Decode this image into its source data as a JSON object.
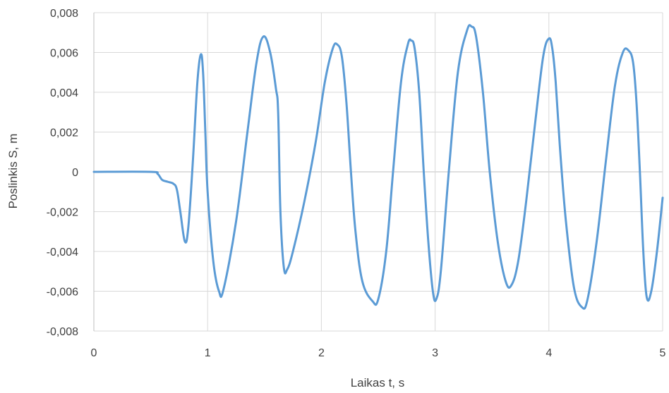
{
  "chart_data": {
    "type": "line",
    "title": "",
    "xlabel": "Laikas t, s",
    "ylabel": "Poslinkis S, m",
    "xlim": [
      0,
      5
    ],
    "ylim": [
      -0.008,
      0.008
    ],
    "x_ticks": [
      0,
      1,
      2,
      3,
      4,
      5
    ],
    "x_tick_labels": [
      "0",
      "1",
      "2",
      "3",
      "4",
      "5"
    ],
    "y_ticks": [
      -0.008,
      -0.006,
      -0.004,
      -0.002,
      0,
      0.002,
      0.004,
      0.006,
      0.008
    ],
    "y_tick_labels": [
      "-0,008",
      "-0,006",
      "-0,004",
      "-0,002",
      "0",
      "0,002",
      "0,004",
      "0,006",
      "0,008"
    ],
    "grid": true,
    "legend": "none",
    "series": [
      {
        "color": "#5b9bd5",
        "points": [
          [
            0,
            0
          ],
          [
            0.5,
            0
          ],
          [
            0.56,
            -0.0001
          ],
          [
            0.6,
            -0.0004
          ],
          [
            0.65,
            -0.0005
          ],
          [
            0.7,
            -0.0006
          ],
          [
            0.73,
            -0.0009
          ],
          [
            0.76,
            -0.002
          ],
          [
            0.8,
            -0.0035
          ],
          [
            0.83,
            -0.0028
          ],
          [
            0.87,
            0.0005
          ],
          [
            0.91,
            0.0045
          ],
          [
            0.94,
            0.0059
          ],
          [
            0.96,
            0.005
          ],
          [
            0.98,
            0.002
          ],
          [
            1.0,
            -0.001
          ],
          [
            1.05,
            -0.0045
          ],
          [
            1.1,
            -0.006
          ],
          [
            1.14,
            -0.0059
          ],
          [
            1.25,
            -0.0025
          ],
          [
            1.35,
            0.002
          ],
          [
            1.43,
            0.0055
          ],
          [
            1.49,
            0.0068
          ],
          [
            1.55,
            0.006
          ],
          [
            1.6,
            0.0042
          ],
          [
            1.62,
            0.003
          ],
          [
            1.64,
            -0.002
          ],
          [
            1.67,
            -0.0048
          ],
          [
            1.7,
            -0.0049
          ],
          [
            1.75,
            -0.004
          ],
          [
            1.85,
            -0.0015
          ],
          [
            1.95,
            0.0015
          ],
          [
            2.03,
            0.0045
          ],
          [
            2.1,
            0.0062
          ],
          [
            2.14,
            0.0064
          ],
          [
            2.18,
            0.0058
          ],
          [
            2.22,
            0.0035
          ],
          [
            2.26,
            0.0
          ],
          [
            2.3,
            -0.003
          ],
          [
            2.36,
            -0.0055
          ],
          [
            2.45,
            -0.0065
          ],
          [
            2.5,
            -0.0064
          ],
          [
            2.57,
            -0.004
          ],
          [
            2.63,
            0.0
          ],
          [
            2.7,
            0.0045
          ],
          [
            2.76,
            0.0064
          ],
          [
            2.79,
            0.0066
          ],
          [
            2.82,
            0.0062
          ],
          [
            2.86,
            0.004
          ],
          [
            2.9,
            0.0
          ],
          [
            2.94,
            -0.0035
          ],
          [
            2.98,
            -0.006
          ],
          [
            3.01,
            -0.0064
          ],
          [
            3.05,
            -0.005
          ],
          [
            3.12,
            0.0
          ],
          [
            3.2,
            0.005
          ],
          [
            3.28,
            0.0071
          ],
          [
            3.32,
            0.0073
          ],
          [
            3.36,
            0.0068
          ],
          [
            3.42,
            0.004
          ],
          [
            3.48,
            0.0
          ],
          [
            3.55,
            -0.0035
          ],
          [
            3.62,
            -0.0055
          ],
          [
            3.67,
            -0.0057
          ],
          [
            3.73,
            -0.0045
          ],
          [
            3.8,
            -0.0015
          ],
          [
            3.88,
            0.0025
          ],
          [
            3.95,
            0.0058
          ],
          [
            4.0,
            0.0067
          ],
          [
            4.03,
            0.0062
          ],
          [
            4.06,
            0.0045
          ],
          [
            4.1,
            0.001
          ],
          [
            4.15,
            -0.0025
          ],
          [
            4.22,
            -0.0058
          ],
          [
            4.29,
            -0.0068
          ],
          [
            4.34,
            -0.0064
          ],
          [
            4.42,
            -0.0035
          ],
          [
            4.5,
            0.0005
          ],
          [
            4.58,
            0.0043
          ],
          [
            4.65,
            0.006
          ],
          [
            4.7,
            0.0061
          ],
          [
            4.74,
            0.0055
          ],
          [
            4.77,
            0.0035
          ],
          [
            4.8,
            0.0
          ],
          [
            4.83,
            -0.004
          ],
          [
            4.86,
            -0.0063
          ],
          [
            4.9,
            -0.006
          ],
          [
            4.95,
            -0.004
          ],
          [
            5.0,
            -0.0013
          ]
        ]
      }
    ]
  }
}
